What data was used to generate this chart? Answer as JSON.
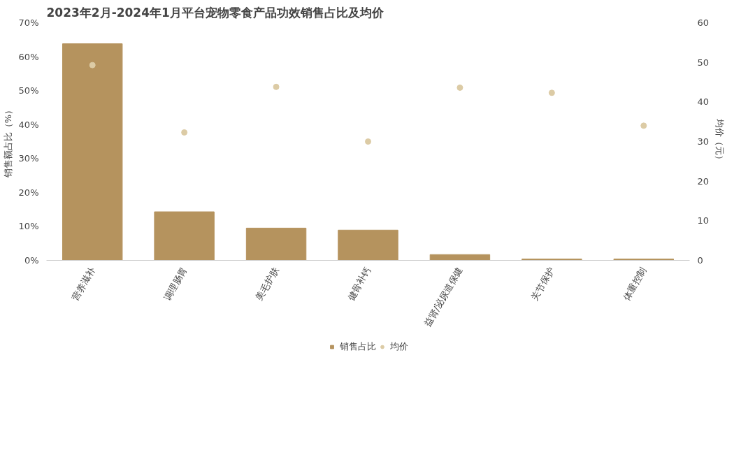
{
  "chart_data": {
    "type": "bar",
    "title": "2023年2月-2024年1月平台宠物零食产品功效销售占比及均价",
    "ylabel": "销售额占比（%）",
    "y2label": "均价（元）",
    "categories": [
      "营养滋补",
      "调理肠胃",
      "美毛护肤",
      "健骨补钙",
      "益肾/泌尿道保健",
      "关节保护",
      "体重控制"
    ],
    "series": [
      {
        "name": "销售占比",
        "type": "bar",
        "color": "#b5935e",
        "values": [
          63.8,
          14.3,
          9.5,
          8.9,
          1.7,
          0.4,
          0.4
        ]
      },
      {
        "name": "均价",
        "type": "scatter",
        "axis": "y2",
        "color": "#dccba5",
        "values": [
          49.3,
          32.3,
          43.8,
          30.0,
          43.6,
          42.3,
          34.0
        ]
      }
    ],
    "ylim": [
      0,
      70
    ],
    "yticks": [
      {
        "value": 0,
        "label": "0%"
      },
      {
        "value": 10,
        "label": "10%"
      },
      {
        "value": 20,
        "label": "20%"
      },
      {
        "value": 30,
        "label": "30%"
      },
      {
        "value": 40,
        "label": "40%"
      },
      {
        "value": 50,
        "label": "50%"
      },
      {
        "value": 60,
        "label": "60%"
      },
      {
        "value": 70,
        "label": "70%"
      }
    ],
    "y2lim": [
      0,
      60
    ],
    "y2ticks": [
      0,
      10,
      20,
      30,
      40,
      50,
      60
    ],
    "legend": "bottom",
    "grid": false,
    "marker": "circle"
  }
}
